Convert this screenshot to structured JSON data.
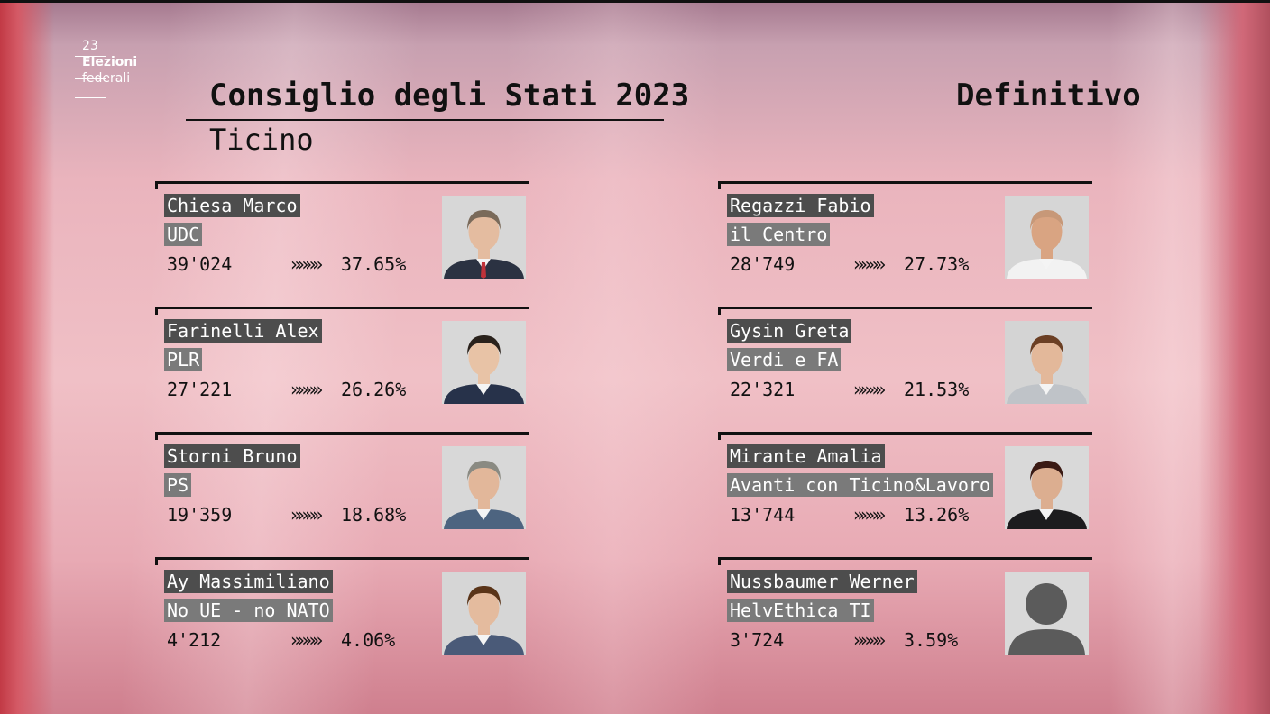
{
  "logo": {
    "line1": "23",
    "line2": "Elezioni",
    "line3": "federali"
  },
  "header": {
    "title": "Consiglio degli Stati 2023",
    "subtitle": "Ticino",
    "status": "Definitivo"
  },
  "arrow_glyph": "»»»»",
  "candidates": [
    {
      "name": "Chiesa Marco",
      "party": "UDC",
      "votes": "39'024",
      "percent": "37.65%",
      "photo_icon": "candidate-portrait",
      "suit": "#2b3242",
      "tie": "#c0323a",
      "hair": "#7a6a5a",
      "skin": "#e4bca0",
      "bg": "#d7d7d7"
    },
    {
      "name": "Regazzi Fabio",
      "party": "il Centro",
      "votes": "28'749",
      "percent": "27.73%",
      "photo_icon": "candidate-portrait",
      "suit": "#f2f2f2",
      "tie": "",
      "hair": "#c79878",
      "skin": "#d9a482",
      "bg": "#d6d6d6"
    },
    {
      "name": "Farinelli Alex",
      "party": "PLR",
      "votes": "27'221",
      "percent": "26.26%",
      "photo_icon": "candidate-portrait",
      "suit": "#27324a",
      "tie": "",
      "hair": "#2a221c",
      "skin": "#e8c3a6",
      "bg": "#d8d8d8"
    },
    {
      "name": "Gysin Greta",
      "party": "Verdi e FA",
      "votes": "22'321",
      "percent": "21.53%",
      "photo_icon": "candidate-portrait",
      "suit": "#bfc3c8",
      "tie": "",
      "hair": "#6b3f24",
      "skin": "#e3b89a",
      "bg": "#d4d4d4"
    },
    {
      "name": "Storni Bruno",
      "party": "PS",
      "votes": "19'359",
      "percent": "18.68%",
      "photo_icon": "candidate-portrait",
      "suit": "#4d6480",
      "tie": "",
      "hair": "#8a8a82",
      "skin": "#e2b79a",
      "bg": "#d8d8d8"
    },
    {
      "name": "Mirante Amalia",
      "party": "Avanti con Ticino&Lavoro",
      "votes": "13'744",
      "percent": "13.26%",
      "photo_icon": "candidate-portrait",
      "suit": "#1c1c1e",
      "tie": "",
      "hair": "#3a1a14",
      "skin": "#dcae90",
      "bg": "#d9d9d9"
    },
    {
      "name": "Ay Massimiliano",
      "party": "No UE - no NATO",
      "votes": "4'212",
      "percent": "4.06%",
      "photo_icon": "candidate-portrait",
      "suit": "#4a5a78",
      "tie": "",
      "hair": "#5a3418",
      "skin": "#e4bb9e",
      "bg": "#d6d6d6"
    },
    {
      "name": "Nussbaumer Werner",
      "party": "HelvEthica TI",
      "votes": "3'724",
      "percent": "3.59%",
      "photo_icon": "placeholder-silhouette-icon",
      "suit": "#5a5a5a",
      "tie": "",
      "hair": "#5a5a5a",
      "skin": "#5a5a5a",
      "bg": "#d9d9d9"
    }
  ]
}
